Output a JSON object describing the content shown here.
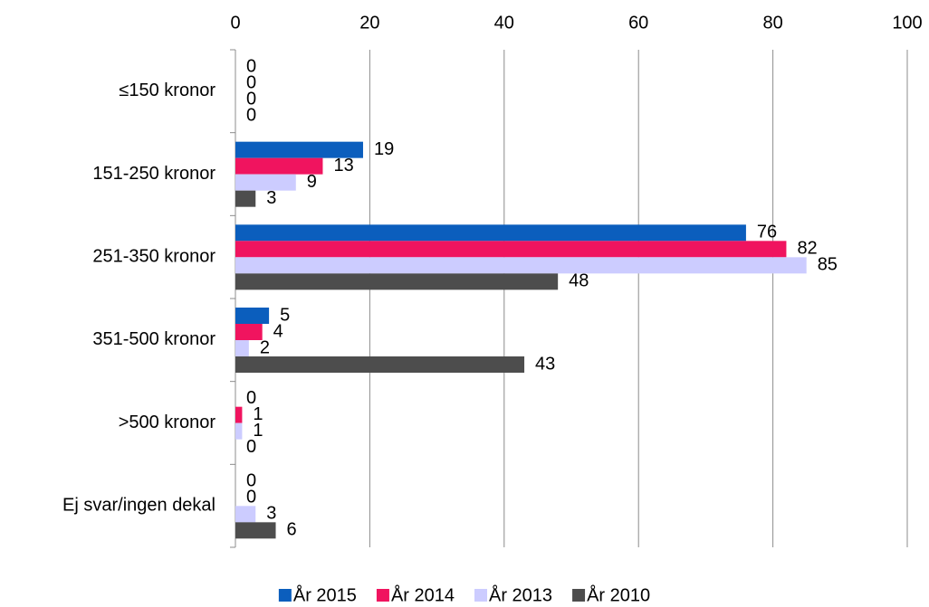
{
  "chart_data": {
    "type": "bar",
    "orientation": "horizontal",
    "categories": [
      "≤150 kronor",
      "151-250 kronor",
      "251-350 kronor",
      "351-500 kronor",
      ">500 kronor",
      "Ej svar/ingen dekal"
    ],
    "series": [
      {
        "name": "År 2015",
        "color": "#0b5ebd",
        "values": [
          0,
          19,
          76,
          5,
          0,
          0
        ]
      },
      {
        "name": "År 2014",
        "color": "#f0145f",
        "values": [
          0,
          13,
          82,
          4,
          1,
          0
        ]
      },
      {
        "name": "År 2013",
        "color": "#ccccff",
        "values": [
          0,
          9,
          85,
          2,
          1,
          3
        ]
      },
      {
        "name": "År 2010",
        "color": "#4d4d4d",
        "values": [
          0,
          3,
          48,
          43,
          0,
          6
        ]
      }
    ],
    "xlim": [
      0,
      100
    ],
    "xticks": [
      0,
      20,
      40,
      60,
      80,
      100
    ],
    "grid": true,
    "legend": "bottom"
  }
}
